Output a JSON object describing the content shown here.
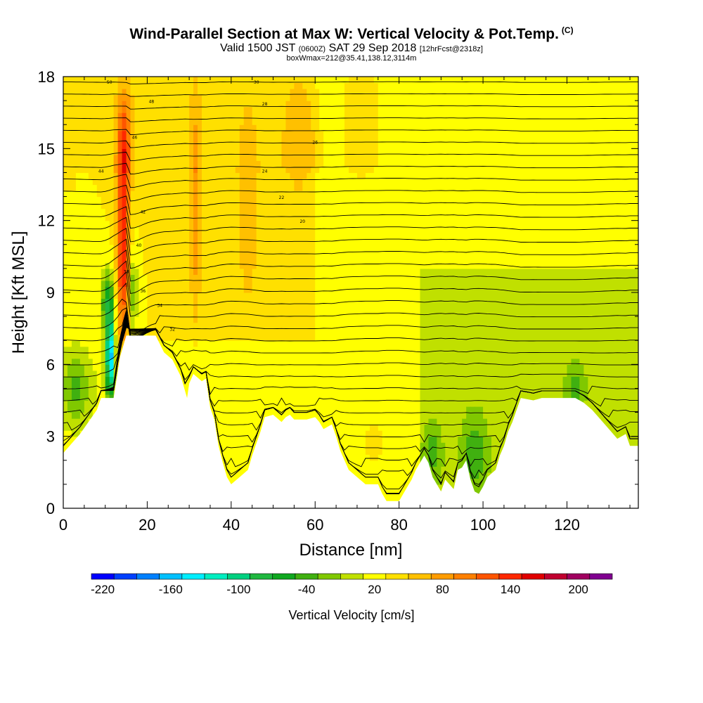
{
  "title": {
    "main": "Wind-Parallel Section at Max W: Vertical Velocity & Pot.Temp.",
    "main_suffix": "(C)",
    "valid_prefix": "Valid 1500 JST",
    "valid_z": "(0600Z)",
    "valid_date": "SAT 29 Sep 2018",
    "fcst": "[12hrFcst@2318z]",
    "box": "boxWmax=212@35.41,138.12,3114m"
  },
  "chart_data": {
    "type": "heatmap",
    "xlabel": "Distance [nm]",
    "ylabel": "Height [Kft MSL]",
    "xlim": [
      0,
      137
    ],
    "ylim": [
      0,
      18
    ],
    "x_ticks": [
      0,
      20,
      40,
      60,
      80,
      100,
      120
    ],
    "y_ticks": [
      0,
      3,
      6,
      9,
      12,
      15,
      18
    ],
    "terrain_kft": [
      [
        0,
        2.3
      ],
      [
        2,
        2.7
      ],
      [
        4,
        3.1
      ],
      [
        6,
        3.6
      ],
      [
        8,
        4.1
      ],
      [
        9,
        4.6
      ],
      [
        12,
        4.6
      ],
      [
        13.5,
        6.3
      ],
      [
        15,
        7.2
      ],
      [
        22,
        7.2
      ],
      [
        24,
        6.5
      ],
      [
        26,
        6.2
      ],
      [
        28,
        5.5
      ],
      [
        29.5,
        4.6
      ],
      [
        30,
        5.2
      ],
      [
        31,
        5.6
      ],
      [
        33,
        5.3
      ],
      [
        34,
        5.4
      ],
      [
        35,
        4.2
      ],
      [
        36,
        3.7
      ],
      [
        37,
        2.6
      ],
      [
        38,
        1.9
      ],
      [
        39,
        1.3
      ],
      [
        40,
        1.0
      ],
      [
        42,
        1.3
      ],
      [
        44,
        1.6
      ],
      [
        45,
        2.2
      ],
      [
        47,
        3.2
      ],
      [
        48,
        3.8
      ],
      [
        50,
        3.9
      ],
      [
        52,
        3.6
      ],
      [
        53,
        3.8
      ],
      [
        54,
        3.9
      ],
      [
        55,
        3.7
      ],
      [
        58,
        3.7
      ],
      [
        60,
        3.8
      ],
      [
        61,
        3.6
      ],
      [
        62,
        3.3
      ],
      [
        64,
        3.5
      ],
      [
        65,
        3.0
      ],
      [
        66,
        2.4
      ],
      [
        67,
        2.0
      ],
      [
        68,
        1.6
      ],
      [
        70,
        1.3
      ],
      [
        72,
        1.0
      ],
      [
        75,
        1.0
      ],
      [
        76,
        0.6
      ],
      [
        77,
        0.3
      ],
      [
        80,
        0.3
      ],
      [
        81,
        0.6
      ],
      [
        82,
        0.9
      ],
      [
        83,
        1.2
      ],
      [
        84,
        1.6
      ],
      [
        85,
        1.9
      ],
      [
        86,
        2.2
      ],
      [
        87,
        1.9
      ],
      [
        88,
        1.3
      ],
      [
        89,
        1.0
      ],
      [
        90,
        0.7
      ],
      [
        91,
        1.2
      ],
      [
        92,
        1.0
      ],
      [
        93,
        0.8
      ],
      [
        94,
        1.6
      ],
      [
        95,
        1.7
      ],
      [
        96,
        2.0
      ],
      [
        97,
        1.2
      ],
      [
        98,
        0.7
      ],
      [
        99,
        0.6
      ],
      [
        100,
        0.9
      ],
      [
        101,
        1.3
      ],
      [
        103,
        1.6
      ],
      [
        104,
        2.2
      ],
      [
        105,
        2.6
      ],
      [
        106,
        3.2
      ],
      [
        107,
        3.6
      ],
      [
        108,
        4.1
      ],
      [
        109,
        4.6
      ],
      [
        112,
        4.5
      ],
      [
        114,
        4.6
      ],
      [
        122,
        4.6
      ],
      [
        124,
        4.4
      ],
      [
        126,
        4.1
      ],
      [
        128,
        3.7
      ],
      [
        130,
        3.3
      ],
      [
        132,
        2.9
      ],
      [
        134,
        3.1
      ],
      [
        135,
        2.6
      ],
      [
        137,
        2.6
      ]
    ],
    "colorbar": {
      "title": "Vertical Velocity [cm/s]",
      "tick_labels": [
        "-220",
        "-160",
        "-100",
        "-40",
        "20",
        "80",
        "140",
        "200"
      ],
      "tick_values": [
        -220,
        -160,
        -100,
        -40,
        20,
        80,
        140,
        200
      ],
      "min": -230,
      "max": 230,
      "step": 20,
      "colors": [
        "#0000ff",
        "#0040ff",
        "#0080ff",
        "#00c0ff",
        "#00eeff",
        "#00eec0",
        "#00d080",
        "#20b840",
        "#10a820",
        "#40b010",
        "#80c800",
        "#c0e000",
        "#ffff00",
        "#ffe000",
        "#ffc000",
        "#ff9c00",
        "#ff8000",
        "#ff5500",
        "#ff2800",
        "#e00000",
        "#c00030",
        "#a00060",
        "#800090"
      ]
    },
    "theta_contour_labels": [
      "50",
      "48",
      "46",
      "44",
      "42",
      "40",
      "38",
      "36",
      "34",
      "32",
      "30",
      "28",
      "26",
      "24",
      "22",
      "20"
    ]
  }
}
